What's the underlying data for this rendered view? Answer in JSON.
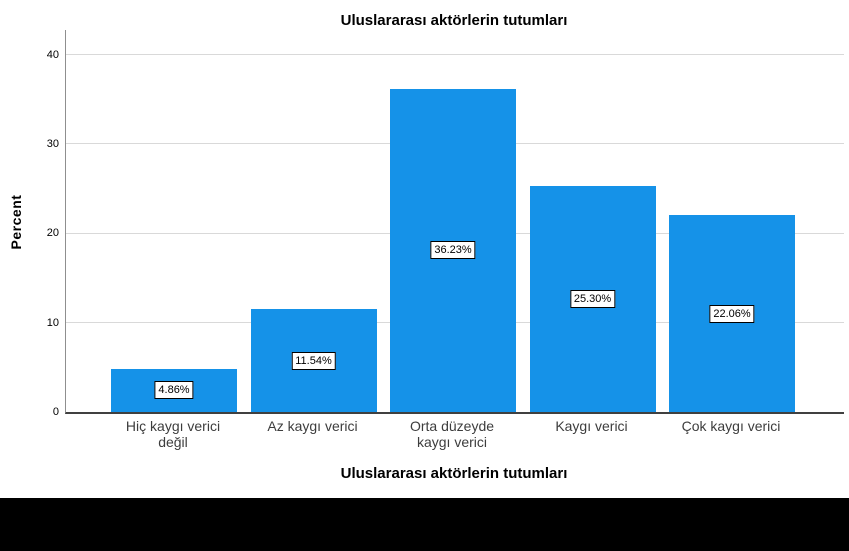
{
  "chart_data": {
    "type": "bar",
    "title": "Uluslararası aktörlerin tutumları",
    "xlabel": "Uluslararası aktörlerin tutumları",
    "ylabel": "Percent",
    "categories": [
      "Hiç kaygı verici\ndeğil",
      "Az kaygı verici",
      "Orta düzeyde\nkaygı verici",
      "Kaygı verici",
      "Çok kaygı verici"
    ],
    "values": [
      4.86,
      11.54,
      36.23,
      25.3,
      22.06
    ],
    "value_labels": [
      "4.86%",
      "11.54%",
      "36.23%",
      "25.30%",
      "22.06%"
    ],
    "y_ticks": [
      0,
      10,
      20,
      30,
      40
    ],
    "ylim": [
      0,
      42.8
    ],
    "legend": "none",
    "grid": "horizontal",
    "colors": {
      "bar": "#1592E8",
      "gridline": "#d9d9d9",
      "axis_line": "#8f8f8f",
      "baseline": "#404040",
      "value_label_bg": "#ffffff",
      "value_label_border": "#000000",
      "title_text": "#000000",
      "tick_text": "#3d3d3d",
      "footer_bar": "#000000"
    }
  }
}
